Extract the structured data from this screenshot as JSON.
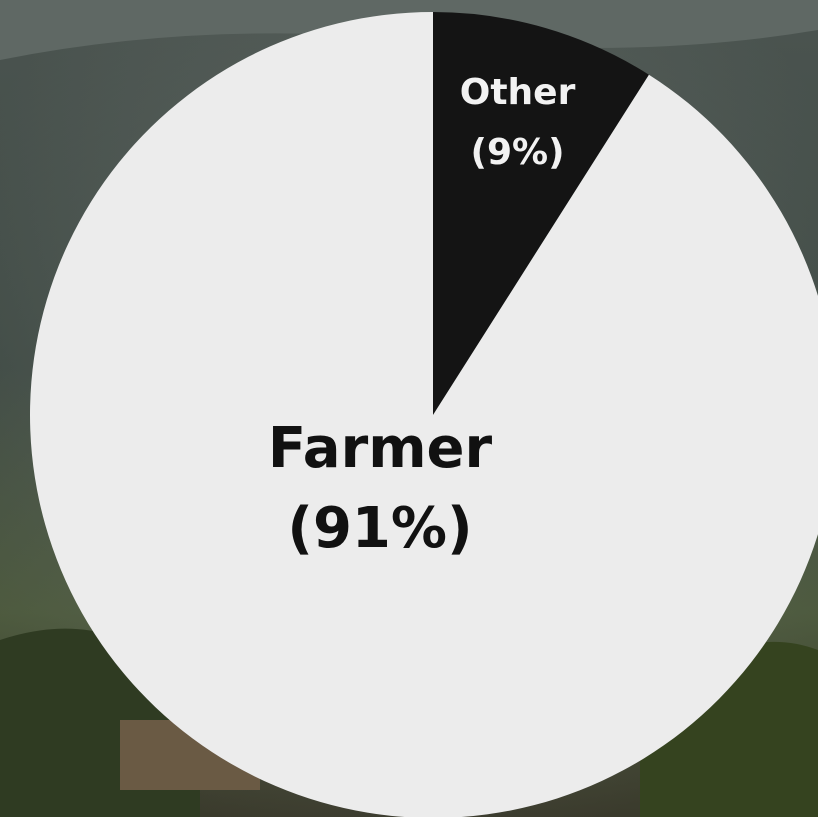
{
  "chart_data": {
    "type": "pie",
    "categories": [
      "Other",
      "Farmer"
    ],
    "values": [
      9,
      91
    ],
    "value_labels": [
      "(9%)",
      "(91%)"
    ],
    "colors": [
      "#141414",
      "#ececec"
    ]
  }
}
